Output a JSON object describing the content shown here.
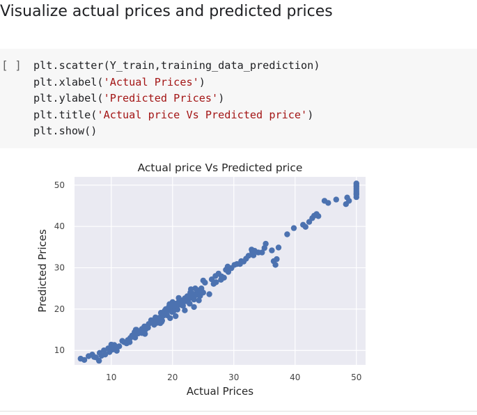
{
  "section": {
    "heading": "Visualize actual prices and predicted prices"
  },
  "code_cell": {
    "run_label": "[ ]",
    "lines": [
      {
        "pre": "plt.scatter(Y_train,training_data_prediction)",
        "str": "",
        "post": ""
      },
      {
        "pre": "plt.xlabel(",
        "str": "'Actual Prices'",
        "post": ")"
      },
      {
        "pre": "plt.ylabel(",
        "str": "'Predicted Prices'",
        "post": ")"
      },
      {
        "pre": "plt.title(",
        "str": "'Actual price Vs Predicted price'",
        "post": ")"
      },
      {
        "pre": "plt.show()",
        "str": "",
        "post": ""
      }
    ]
  },
  "chart_data": {
    "type": "scatter",
    "title": "Actual price Vs Predicted price",
    "xlabel": "Actual Prices",
    "ylabel": "Predicted Prices",
    "xlim": [
      4,
      51.5
    ],
    "ylim": [
      6.5,
      52
    ],
    "xticks": [
      10,
      20,
      30,
      40,
      50
    ],
    "yticks": [
      10,
      20,
      30,
      40,
      50
    ],
    "grid": true,
    "colors": {
      "background": "#eaeaf2",
      "point": "#4c72b0",
      "grid": "#ffffff"
    },
    "series": [
      {
        "x": [
          5.0,
          5.6,
          6.3,
          6.9,
          7.2,
          7.5,
          8.1,
          8.4,
          8.8,
          9.5,
          9.7,
          10.2,
          10.5,
          10.9,
          11.3,
          11.8,
          12.1,
          12.7,
          13.1,
          13.4,
          13.8,
          13.9,
          14.1,
          14.4,
          14.5,
          14.9,
          15.0,
          15.2,
          15.4,
          15.6,
          16.1,
          16.5,
          16.8,
          17.2,
          17.4,
          17.8,
          18.1,
          18.3,
          18.5,
          18.7,
          18.9,
          19.1,
          19.3,
          19.4,
          19.6,
          19.9,
          20.0,
          20.1,
          20.3,
          20.5,
          20.6,
          20.8,
          21.0,
          21.2,
          21.4,
          21.6,
          21.7,
          22.0,
          22.2,
          22.4,
          22.6,
          22.8,
          22.9,
          23.1,
          23.3,
          23.5,
          23.7,
          23.9,
          24.1,
          24.3,
          24.5,
          24.7,
          25.0,
          25.3,
          26.4,
          26.7,
          27.1,
          27.5,
          27.9,
          28.4,
          28.7,
          29.1,
          29.6,
          30.1,
          30.5,
          31.2,
          31.6,
          32.0,
          32.4,
          32.9,
          33.2,
          33.4,
          34.6,
          35.2,
          36.2,
          36.5,
          37.0,
          37.3,
          38.7,
          39.8,
          41.3,
          41.7,
          42.3,
          42.8,
          43.1,
          43.5,
          43.8,
          44.8,
          45.4,
          46.7,
          48.3,
          48.5,
          48.8,
          50.0,
          50.0,
          50.0,
          50.0,
          50.0,
          50.0,
          50.0,
          50.0,
          11.0,
          12.5,
          15.5,
          17.0,
          22.5,
          24.0,
          25.0,
          27.0,
          13.0,
          16.0,
          19.0,
          21.0,
          23.0,
          28.0,
          31.0,
          34.0,
          18.0,
          20.5,
          22.0,
          14.0,
          9.0,
          8.0,
          10.0,
          26.0,
          29.0,
          33.0,
          35.0,
          24.5,
          19.5,
          15.0,
          36.8,
          17.5,
          21.5,
          23.5,
          18.2,
          20.2
        ],
        "y": [
          8.0,
          7.7,
          8.6,
          9.0,
          8.4,
          8.3,
          9.4,
          8.7,
          10.0,
          10.5,
          9.6,
          10.2,
          11.3,
          9.9,
          11.0,
          12.3,
          12.0,
          12.5,
          13.0,
          13.6,
          14.4,
          13.1,
          15.0,
          14.1,
          14.6,
          14.9,
          14.2,
          15.3,
          15.8,
          15.1,
          16.4,
          17.3,
          16.6,
          18.0,
          17.1,
          17.9,
          19.1,
          17.2,
          18.4,
          19.6,
          20.0,
          18.5,
          19.8,
          20.5,
          17.8,
          19.3,
          21.7,
          20.2,
          20.6,
          21.3,
          20.1,
          19.9,
          21.7,
          21.1,
          21.5,
          22.1,
          20.8,
          22.6,
          21.9,
          23.1,
          22.4,
          21.3,
          24.0,
          22.9,
          23.7,
          22.3,
          25.0,
          23.4,
          24.4,
          22.1,
          23.6,
          25.0,
          24.0,
          26.4,
          27.2,
          26.1,
          26.5,
          28.6,
          27.1,
          27.6,
          29.5,
          29.0,
          29.9,
          30.7,
          30.9,
          31.6,
          31.5,
          32.2,
          32.9,
          34.4,
          33.0,
          34.1,
          33.7,
          35.8,
          34.2,
          31.6,
          32.1,
          34.9,
          38.1,
          39.6,
          40.4,
          39.9,
          41.1,
          42.0,
          42.6,
          43.0,
          42.5,
          46.2,
          45.7,
          46.5,
          45.4,
          47.0,
          46.2,
          47.1,
          47.7,
          48.1,
          48.6,
          49.1,
          49.6,
          50.0,
          50.4,
          10.8,
          11.7,
          14.0,
          16.2,
          22.0,
          24.6,
          26.9,
          28.0,
          12.0,
          15.5,
          18.8,
          22.7,
          24.8,
          27.9,
          30.9,
          33.7,
          16.6,
          18.3,
          19.7,
          15.0,
          9.0,
          7.5,
          11.4,
          23.6,
          30.3,
          33.9,
          34.8,
          23.2,
          21.2,
          15.2,
          30.7,
          16.7,
          21.0,
          20.5,
          16.9,
          19.6
        ]
      }
    ]
  }
}
